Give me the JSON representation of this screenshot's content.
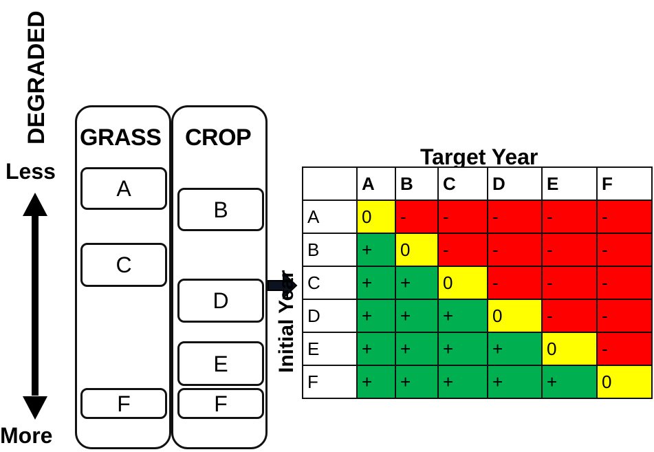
{
  "left_axis": {
    "title": "DEGRADED",
    "top_label": "Less",
    "bottom_label": "More"
  },
  "columns": {
    "grass": {
      "title": "GRASS",
      "states": [
        "A",
        "C",
        "F"
      ]
    },
    "crop": {
      "title": "CROP",
      "states": [
        "B",
        "D",
        "E",
        "F"
      ]
    }
  },
  "matrix": {
    "title": "Target Year",
    "row_axis_label": "Initial Year",
    "headers": [
      "A",
      "B",
      "C",
      "D",
      "E",
      "F"
    ],
    "rows": [
      {
        "label": "A",
        "cells": [
          "0",
          "-",
          "-",
          "-",
          "-",
          "-"
        ]
      },
      {
        "label": "B",
        "cells": [
          "+",
          "0",
          "-",
          "-",
          "-",
          "-"
        ]
      },
      {
        "label": "C",
        "cells": [
          "+",
          "+",
          "0",
          "-",
          "-",
          "-"
        ]
      },
      {
        "label": "D",
        "cells": [
          "+",
          "+",
          "+",
          "0",
          "-",
          "-"
        ]
      },
      {
        "label": "E",
        "cells": [
          "+",
          "+",
          "+",
          "+",
          "0",
          "-"
        ]
      },
      {
        "label": "F",
        "cells": [
          "+",
          "+",
          "+",
          "+",
          "+",
          "0"
        ]
      }
    ],
    "colors": {
      "positive": "#00b050",
      "neutral": "#ffff00",
      "negative": "#ff0000"
    }
  }
}
